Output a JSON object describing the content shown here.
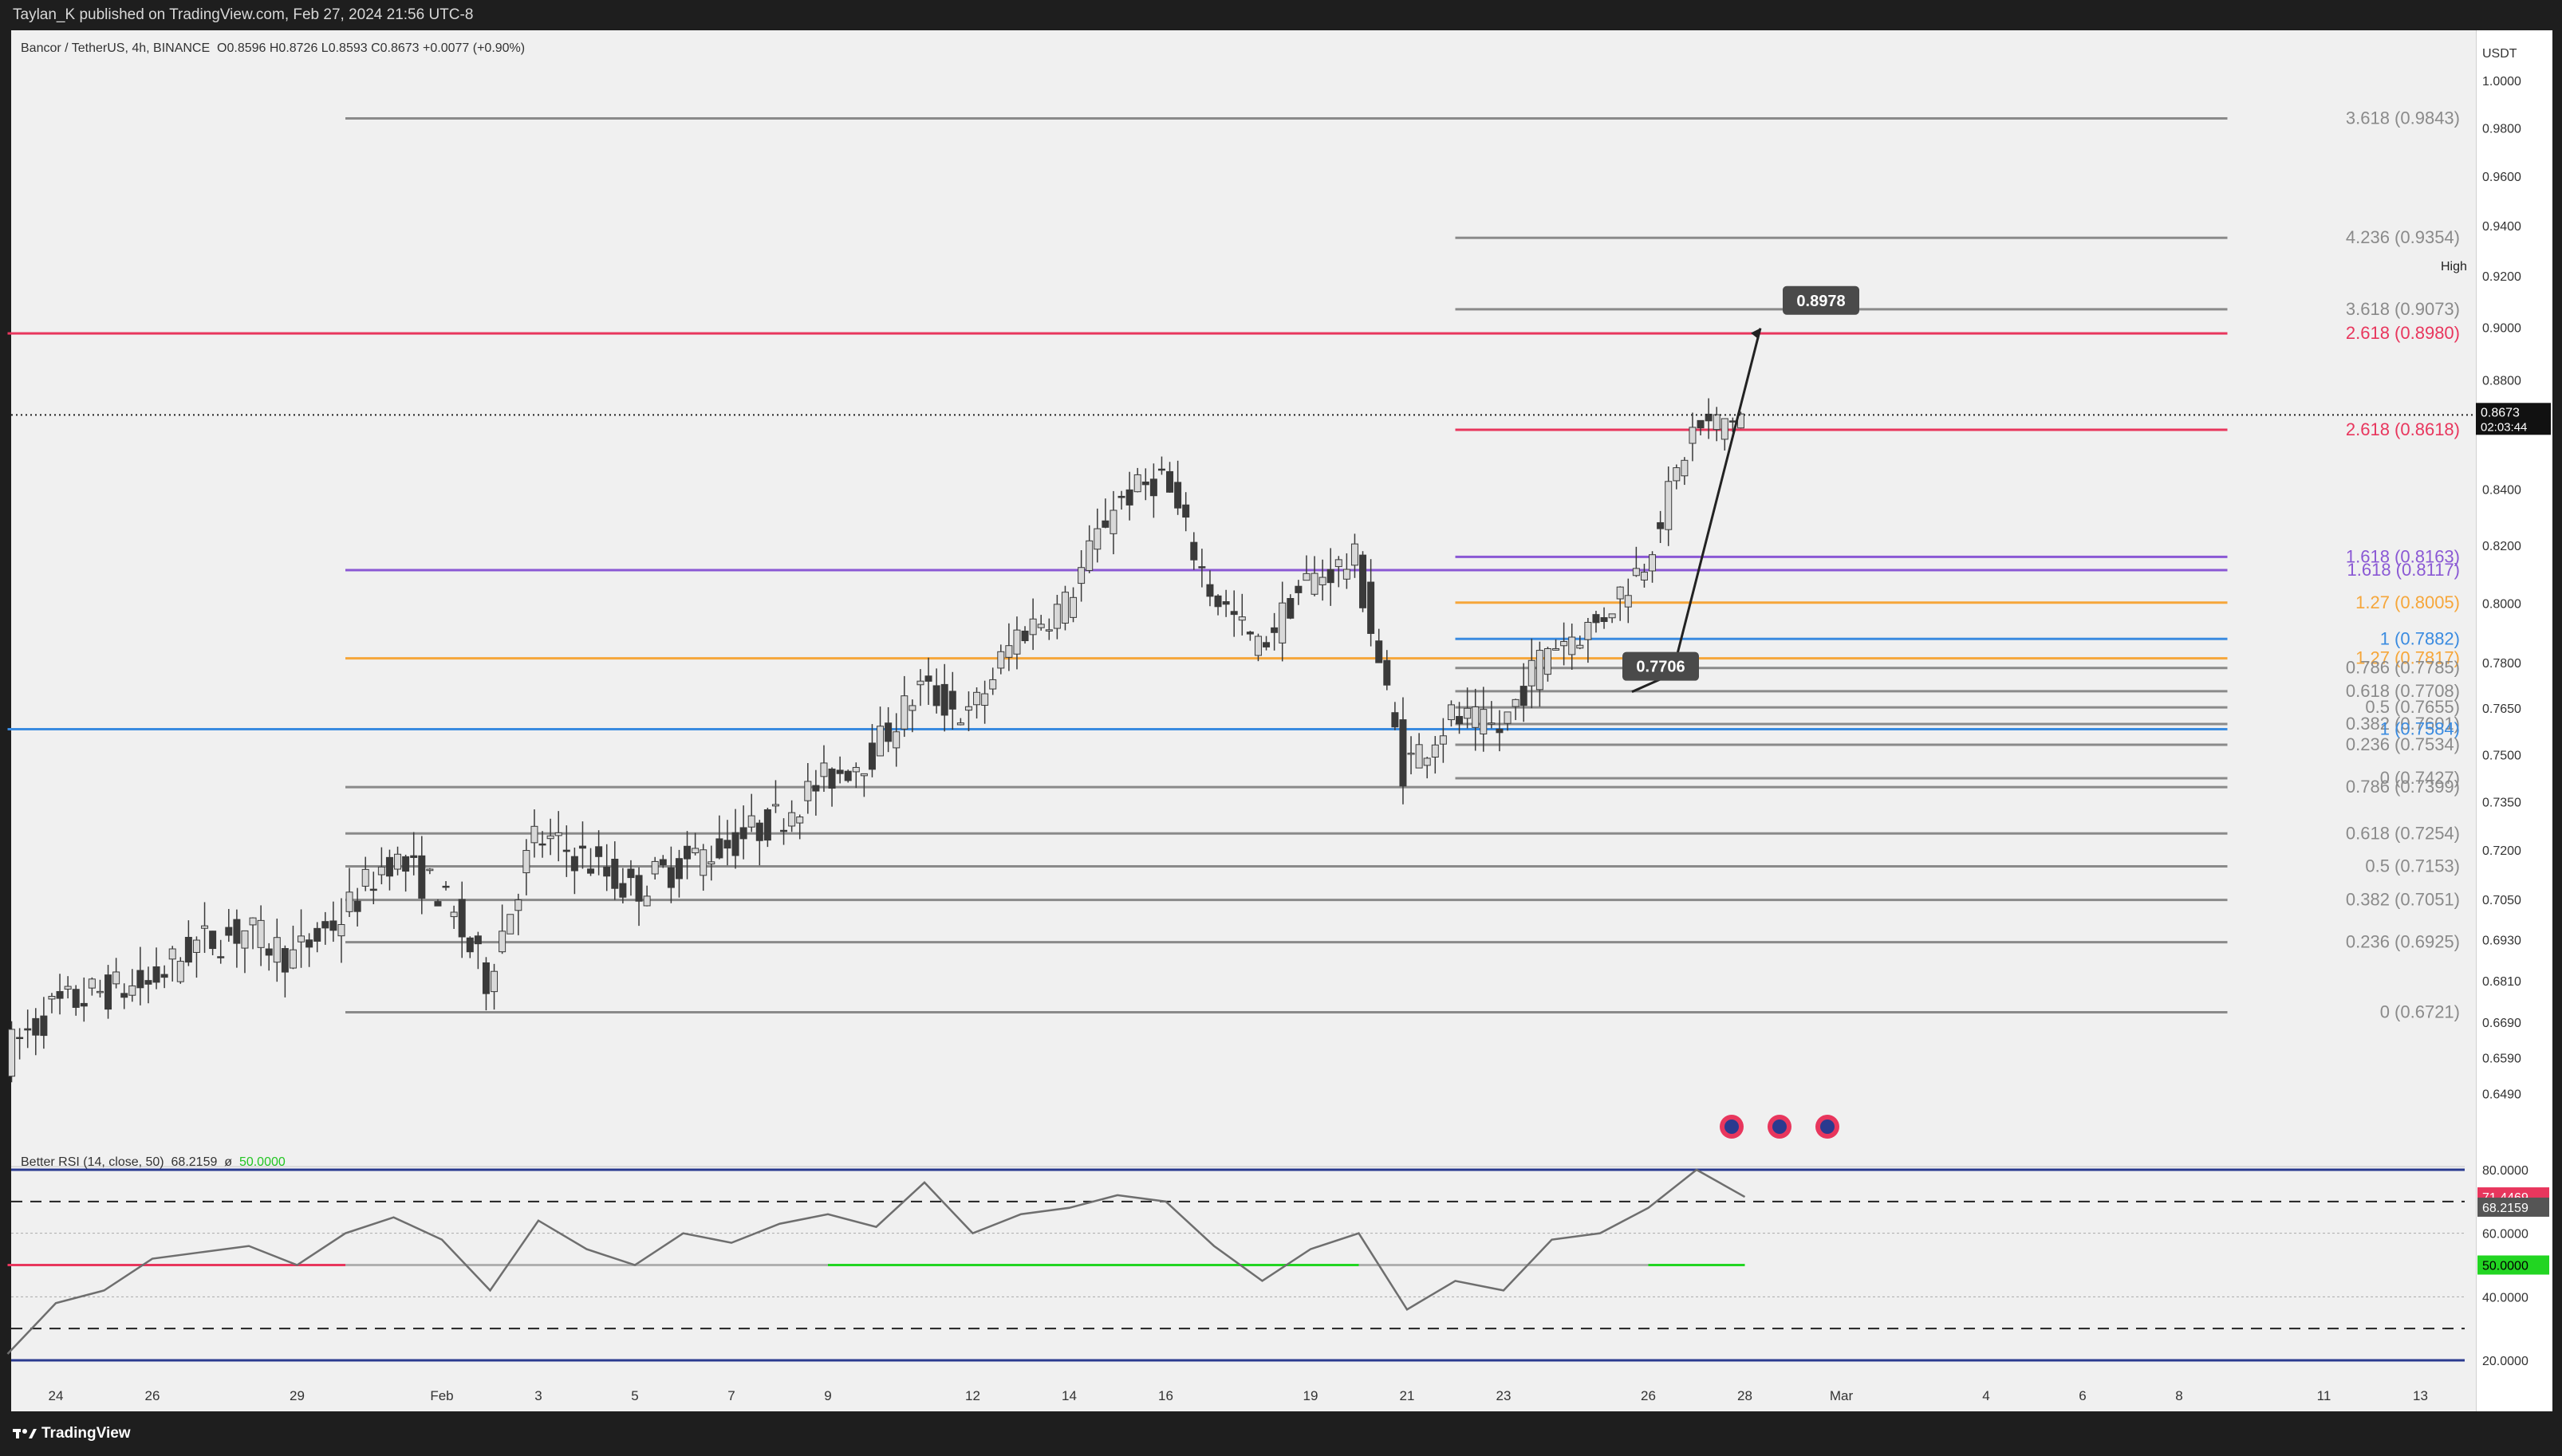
{
  "header": {
    "publish_info": "Taylan_K published on TradingView.com, Feb 27, 2024 21:56 UTC-8"
  },
  "footer": {
    "brand": "TradingView"
  },
  "colors": {
    "background": "#f0f0f0",
    "up_candle": "#d9d9d9",
    "down_candle": "#3a3a3a",
    "fib_gray": "#8a8a8a",
    "fib_red": "#e8365d",
    "fib_purple": "#8a58d4",
    "fib_orange": "#f6a63a",
    "fib_blue": "#3a8be0",
    "rsi_line": "#6e6e6e",
    "rsi_band": "#2a3a8f"
  },
  "legend": {
    "symbol": "Bancor / TetherUS, 4h, BINANCE",
    "ohlc": "O0.8596  H0.8726  L0.8593  C0.8673  +0.0077 (+0.90%)"
  },
  "rsi_legend": {
    "label": "Better RSI (14, close, 50)",
    "value": "68.2159",
    "symbol": "ø",
    "level": "50.0000"
  },
  "icons": [
    "us-flag-event-icon",
    "us-flag-event-icon",
    "us-flag-event-icon"
  ],
  "chart_data": [
    {
      "type": "candlestick",
      "title": "Bancor / TetherUS, 4h, BINANCE",
      "currency": "USDT",
      "y_scale": "log",
      "ylim": [
        0.6405,
        1.0
      ],
      "x_tick_labels": [
        "24",
        "26",
        "29",
        "Feb",
        "3",
        "5",
        "7",
        "9",
        "12",
        "14",
        "16",
        "19",
        "21",
        "23",
        "26",
        "28",
        "Mar",
        "4",
        "6",
        "8",
        "11",
        "13"
      ],
      "x_range": [
        "2024-01-23",
        "2024-03-14"
      ],
      "y_ticks": [
        1.0,
        0.98,
        0.96,
        0.94,
        0.92,
        0.9,
        0.88,
        0.84,
        0.82,
        0.8,
        0.78,
        0.765,
        0.75,
        0.735,
        0.72,
        0.705,
        0.693,
        0.681,
        0.669,
        0.659,
        0.649
      ],
      "y_tick_labels": [
        "1.0000",
        "0.9800",
        "0.9600",
        "0.9400",
        "0.9200",
        "0.9000",
        "0.8800",
        "0.8400",
        "0.8200",
        "0.8000",
        "0.7800",
        "0.7650",
        "0.7500",
        "0.7350",
        "0.7200",
        "0.7050",
        "0.6930",
        "0.6810",
        "0.6690",
        "0.6590",
        "0.6490"
      ],
      "high_label": "High",
      "last_price": "0.8673",
      "countdown": "02:03:44",
      "daily_path": [
        {
          "date": "2024-01-23",
          "close": 0.66
        },
        {
          "date": "2024-01-24",
          "close": 0.673
        },
        {
          "date": "2024-01-25",
          "close": 0.678
        },
        {
          "date": "2024-01-26",
          "close": 0.68
        },
        {
          "date": "2024-01-27",
          "close": 0.692
        },
        {
          "date": "2024-01-28",
          "close": 0.696
        },
        {
          "date": "2024-01-29",
          "close": 0.688
        },
        {
          "date": "2024-01-30",
          "close": 0.7
        },
        {
          "date": "2024-01-31",
          "close": 0.718
        },
        {
          "date": "2024-02-01",
          "close": 0.708
        },
        {
          "date": "2024-02-02",
          "close": 0.682
        },
        {
          "date": "2024-02-03",
          "close": 0.724
        },
        {
          "date": "2024-02-04",
          "close": 0.718
        },
        {
          "date": "2024-02-05",
          "close": 0.708
        },
        {
          "date": "2024-02-06",
          "close": 0.716
        },
        {
          "date": "2024-02-07",
          "close": 0.722
        },
        {
          "date": "2024-02-08",
          "close": 0.73
        },
        {
          "date": "2024-02-09",
          "close": 0.742
        },
        {
          "date": "2024-02-10",
          "close": 0.751
        },
        {
          "date": "2024-02-11",
          "close": 0.772
        },
        {
          "date": "2024-02-12",
          "close": 0.762
        },
        {
          "date": "2024-02-13",
          "close": 0.79
        },
        {
          "date": "2024-02-14",
          "close": 0.8
        },
        {
          "date": "2024-02-15",
          "close": 0.835
        },
        {
          "date": "2024-02-16",
          "close": 0.845
        },
        {
          "date": "2024-02-17",
          "close": 0.805
        },
        {
          "date": "2024-02-18",
          "close": 0.785
        },
        {
          "date": "2024-02-19",
          "close": 0.808
        },
        {
          "date": "2024-02-20",
          "close": 0.815
        },
        {
          "date": "2024-02-21",
          "close": 0.746
        },
        {
          "date": "2024-02-22",
          "close": 0.762
        },
        {
          "date": "2024-02-23",
          "close": 0.758
        },
        {
          "date": "2024-02-24",
          "close": 0.786
        },
        {
          "date": "2024-02-25",
          "close": 0.793
        },
        {
          "date": "2024-02-26",
          "close": 0.815
        },
        {
          "date": "2024-02-27",
          "close": 0.861
        },
        {
          "date": "2024-02-28",
          "close": 0.8673
        }
      ],
      "fib_levels": [
        {
          "label": "3.618 (0.9843)",
          "value": 0.9843,
          "color": "#8a8a8a",
          "from": "2024-01-30",
          "to": "2024-03-09"
        },
        {
          "label": "4.236 (0.9354)",
          "value": 0.9354,
          "color": "#8a8a8a",
          "from": "2024-02-22",
          "to": "2024-03-09"
        },
        {
          "label": "3.618 (0.9073)",
          "value": 0.9073,
          "color": "#8a8a8a",
          "from": "2024-02-22",
          "to": "2024-03-09"
        },
        {
          "label": "2.618 (0.8980)",
          "value": 0.898,
          "color": "#e8365d",
          "from": "2024-01-23",
          "to": "2024-03-09"
        },
        {
          "label": "2.618 (0.8618)",
          "value": 0.8618,
          "color": "#e8365d",
          "from": "2024-02-22",
          "to": "2024-03-09"
        },
        {
          "label": "1.618 (0.8163)",
          "value": 0.8163,
          "color": "#8a58d4",
          "from": "2024-02-22",
          "to": "2024-03-09"
        },
        {
          "label": "1.618 (0.8117)",
          "value": 0.8117,
          "color": "#8a58d4",
          "from": "2024-01-30",
          "to": "2024-03-09"
        },
        {
          "label": "1.27 (0.8005)",
          "value": 0.8005,
          "color": "#f6a63a",
          "from": "2024-02-22",
          "to": "2024-03-09"
        },
        {
          "label": "1 (0.7882)",
          "value": 0.7882,
          "color": "#3a8be0",
          "from": "2024-02-22",
          "to": "2024-03-09"
        },
        {
          "label": "1.27 (0.7817)",
          "value": 0.7817,
          "color": "#f6a63a",
          "from": "2024-01-30",
          "to": "2024-03-09"
        },
        {
          "label": "0.786 (0.7785)",
          "value": 0.7785,
          "color": "#8a8a8a",
          "from": "2024-02-22",
          "to": "2024-03-09"
        },
        {
          "label": "0.618 (0.7708)",
          "value": 0.7708,
          "color": "#8a8a8a",
          "from": "2024-02-22",
          "to": "2024-03-09"
        },
        {
          "label": "0.5 (0.7655)",
          "value": 0.7655,
          "color": "#8a8a8a",
          "from": "2024-02-22",
          "to": "2024-03-09"
        },
        {
          "label": "0.382 (0.7601)",
          "value": 0.7601,
          "color": "#8a8a8a",
          "from": "2024-02-22",
          "to": "2024-03-09"
        },
        {
          "label": "1 (0.7584)",
          "value": 0.7584,
          "color": "#3a8be0",
          "from": "2024-01-23",
          "to": "2024-03-09"
        },
        {
          "label": "0.236 (0.7534)",
          "value": 0.7534,
          "color": "#8a8a8a",
          "from": "2024-02-22",
          "to": "2024-03-09"
        },
        {
          "label": "0 (0.7427)",
          "value": 0.7427,
          "color": "#8a8a8a",
          "from": "2024-02-22",
          "to": "2024-03-09"
        },
        {
          "label": "0.786 (0.7399)",
          "value": 0.7399,
          "color": "#8a8a8a",
          "from": "2024-01-30",
          "to": "2024-03-09"
        },
        {
          "label": "0.618 (0.7254)",
          "value": 0.7254,
          "color": "#8a8a8a",
          "from": "2024-01-30",
          "to": "2024-03-09"
        },
        {
          "label": "0.5 (0.7153)",
          "value": 0.7153,
          "color": "#8a8a8a",
          "from": "2024-01-30",
          "to": "2024-03-09"
        },
        {
          "label": "0.382 (0.7051)",
          "value": 0.7051,
          "color": "#8a8a8a",
          "from": "2024-01-30",
          "to": "2024-03-09"
        },
        {
          "label": "0.236 (0.6925)",
          "value": 0.6925,
          "color": "#8a8a8a",
          "from": "2024-01-30",
          "to": "2024-03-09"
        },
        {
          "label": "0 (0.6721)",
          "value": 0.6721,
          "color": "#8a8a8a",
          "from": "2024-01-30",
          "to": "2024-03-09"
        }
      ],
      "callouts": [
        {
          "text": "0.8978",
          "value": 0.8978,
          "date": "2024-02-27"
        },
        {
          "text": "0.7706",
          "value": 0.7706,
          "date": "2024-02-25"
        }
      ],
      "axis_badges": [
        "High",
        "0.9200",
        "0.8673",
        "02:03:44"
      ]
    },
    {
      "type": "line",
      "title": "Better RSI (14, close, 50)",
      "ylim": [
        15,
        85
      ],
      "y_ticks": [
        80,
        71.4469,
        68.2159,
        60,
        50,
        40,
        20
      ],
      "y_tick_labels": [
        "80.0000",
        "71.4469",
        "68.2159",
        "60.0000",
        "50.0000",
        "40.0000",
        "20.0000"
      ],
      "bands": [
        80,
        70,
        30,
        20
      ],
      "midline": 50,
      "series": [
        {
          "values": [
            [
              "2024-01-23",
              22
            ],
            [
              "2024-01-24",
              38
            ],
            [
              "2024-01-25",
              42
            ],
            [
              "2024-01-26",
              52
            ],
            [
              "2024-01-27",
              54
            ],
            [
              "2024-01-28",
              56
            ],
            [
              "2024-01-29",
              50
            ],
            [
              "2024-01-30",
              60
            ],
            [
              "2024-01-31",
              65
            ],
            [
              "2024-02-01",
              58
            ],
            [
              "2024-02-02",
              42
            ],
            [
              "2024-02-03",
              64
            ],
            [
              "2024-02-04",
              55
            ],
            [
              "2024-02-05",
              50
            ],
            [
              "2024-02-06",
              60
            ],
            [
              "2024-02-07",
              57
            ],
            [
              "2024-02-08",
              63
            ],
            [
              "2024-02-09",
              66
            ],
            [
              "2024-02-10",
              62
            ],
            [
              "2024-02-11",
              76
            ],
            [
              "2024-02-12",
              60
            ],
            [
              "2024-02-13",
              66
            ],
            [
              "2024-02-14",
              68
            ],
            [
              "2024-02-15",
              72
            ],
            [
              "2024-02-16",
              70
            ],
            [
              "2024-02-17",
              56
            ],
            [
              "2024-02-18",
              45
            ],
            [
              "2024-02-19",
              55
            ],
            [
              "2024-02-20",
              60
            ],
            [
              "2024-02-21",
              36
            ],
            [
              "2024-02-22",
              45
            ],
            [
              "2024-02-23",
              42
            ],
            [
              "2024-02-24",
              58
            ],
            [
              "2024-02-25",
              60
            ],
            [
              "2024-02-26",
              68
            ],
            [
              "2024-02-27",
              80
            ],
            [
              "2024-02-28",
              71.4469
            ]
          ]
        }
      ],
      "threshold_segments": [
        {
          "from": "2024-01-23",
          "to": "2024-01-30",
          "value": 50,
          "color": "#e8365d"
        },
        {
          "from": "2024-01-30",
          "to": "2024-02-09",
          "value": 50,
          "color": "#b0b0b0"
        },
        {
          "from": "2024-02-09",
          "to": "2024-02-20",
          "value": 50,
          "color": "#22d522"
        },
        {
          "from": "2024-02-20",
          "to": "2024-02-26",
          "value": 50,
          "color": "#b0b0b0"
        },
        {
          "from": "2024-02-26",
          "to": "2024-02-28",
          "value": 50,
          "color": "#22d522"
        }
      ]
    }
  ]
}
